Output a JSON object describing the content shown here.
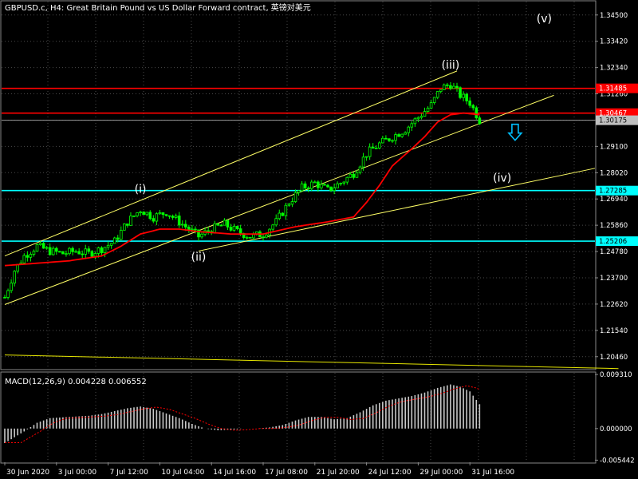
{
  "header": {
    "title": "GBPUSD.c, H4:  Great Britain Pound vs US Dollar Forward contract, 英镑对美元"
  },
  "colors": {
    "background": "#000000",
    "grid": "#4a4a4a",
    "bull_candle": "#00ff00",
    "bear_candle": "#00ff00",
    "ma": "#ff0000",
    "channel": "#ffff66",
    "resistance": "#ff0000",
    "support": "#00ffff",
    "macd_hist": "#c8c8c8",
    "macd_signal": "#ff0000",
    "text": "#ffffff"
  },
  "price_axis": {
    "ticks": [
      "1.34500",
      "1.33420",
      "1.32340",
      "1.31260",
      "1.30180",
      "1.29100",
      "1.28020",
      "1.26940",
      "1.25860",
      "1.24780",
      "1.23700",
      "1.22620",
      "1.21540",
      "1.20460"
    ],
    "range": [
      1.1996,
      1.3505
    ]
  },
  "price_labels": [
    {
      "value": "1.31485",
      "kind": "resistance",
      "price": 1.31485
    },
    {
      "value": "1.30467",
      "kind": "resistance",
      "price": 1.30467
    },
    {
      "value": "1.30175",
      "kind": "current",
      "price": 1.30175
    },
    {
      "value": "1.27285",
      "kind": "support",
      "price": 1.27285
    },
    {
      "value": "1.25206",
      "kind": "support",
      "price": 1.25206
    }
  ],
  "wave_labels": [
    {
      "text": "(i)",
      "bar": 42,
      "price": 1.272
    },
    {
      "text": "(ii)",
      "bar": 60,
      "price": 1.244
    },
    {
      "text": "(iii)",
      "bar": 138,
      "price": 1.323
    },
    {
      "text": "(iv)",
      "bar": 154,
      "price": 1.2765
    },
    {
      "text": "(v)",
      "bar": 167,
      "price": 1.342
    }
  ],
  "time_axis": {
    "labels": [
      {
        "text": "30 Jun 2020",
        "bar": 0
      },
      {
        "text": "3 Jul 00:00",
        "bar": 16
      },
      {
        "text": "7 Jul 12:00",
        "bar": 32
      },
      {
        "text": "10 Jul 04:00",
        "bar": 48
      },
      {
        "text": "14 Jul 16:00",
        "bar": 64
      },
      {
        "text": "17 Jul 08:00",
        "bar": 80
      },
      {
        "text": "21 Jul 20:00",
        "bar": 96
      },
      {
        "text": "24 Jul 12:00",
        "bar": 112
      },
      {
        "text": "29 Jul 00:00",
        "bar": 128
      },
      {
        "text": "31 Jul 16:00",
        "bar": 144
      }
    ]
  },
  "macd": {
    "label": "MACD(12,26,9) 0.004228 0.006552",
    "ticks": [
      "0.009310",
      "0.000000",
      "-0.005442"
    ],
    "range": [
      -0.0058,
      0.0096
    ]
  },
  "chart_data": {
    "type": "candlestick",
    "symbol": "GBPUSD.c",
    "timeframe": "H4",
    "ylim": [
      1.1996,
      1.3505
    ],
    "close_path": [
      [
        0,
        1.229
      ],
      [
        3,
        1.24
      ],
      [
        6,
        1.246
      ],
      [
        10,
        1.25
      ],
      [
        14,
        1.248
      ],
      [
        18,
        1.247
      ],
      [
        22,
        1.248
      ],
      [
        26,
        1.247
      ],
      [
        30,
        1.249
      ],
      [
        34,
        1.252
      ],
      [
        38,
        1.26
      ],
      [
        42,
        1.265
      ],
      [
        46,
        1.262
      ],
      [
        50,
        1.264
      ],
      [
        54,
        1.26
      ],
      [
        58,
        1.256
      ],
      [
        60,
        1.254
      ],
      [
        64,
        1.257
      ],
      [
        68,
        1.259
      ],
      [
        72,
        1.256
      ],
      [
        76,
        1.254
      ],
      [
        80,
        1.255
      ],
      [
        84,
        1.26
      ],
      [
        88,
        1.268
      ],
      [
        92,
        1.274
      ],
      [
        96,
        1.276
      ],
      [
        100,
        1.273
      ],
      [
        104,
        1.276
      ],
      [
        108,
        1.28
      ],
      [
        112,
        1.288
      ],
      [
        116,
        1.292
      ],
      [
        120,
        1.295
      ],
      [
        124,
        1.298
      ],
      [
        128,
        1.303
      ],
      [
        132,
        1.308
      ],
      [
        135,
        1.315
      ],
      [
        138,
        1.3165
      ],
      [
        141,
        1.312
      ],
      [
        144,
        1.309
      ],
      [
        147,
        1.3017
      ]
    ],
    "ma_path": [
      [
        0,
        1.242
      ],
      [
        10,
        1.243
      ],
      [
        20,
        1.244
      ],
      [
        30,
        1.246
      ],
      [
        36,
        1.25
      ],
      [
        42,
        1.255
      ],
      [
        48,
        1.257
      ],
      [
        54,
        1.257
      ],
      [
        60,
        1.256
      ],
      [
        70,
        1.255
      ],
      [
        80,
        1.255
      ],
      [
        90,
        1.258
      ],
      [
        100,
        1.26
      ],
      [
        108,
        1.262
      ],
      [
        112,
        1.268
      ],
      [
        116,
        1.275
      ],
      [
        120,
        1.283
      ],
      [
        126,
        1.29
      ],
      [
        130,
        1.295
      ],
      [
        134,
        1.301
      ],
      [
        138,
        1.304
      ],
      [
        142,
        1.3047
      ],
      [
        147,
        1.304
      ]
    ],
    "channel_lines": [
      {
        "from": [
          0,
          1.246
        ],
        "to": [
          140,
          1.322
        ]
      },
      {
        "from": [
          0,
          1.226
        ],
        "to": [
          170,
          1.312
        ]
      },
      {
        "from": [
          60,
          1.248
        ],
        "to": [
          190,
          1.282
        ]
      }
    ],
    "horizontal_lines": [
      {
        "price": 1.31485,
        "kind": "resistance"
      },
      {
        "price": 1.30467,
        "kind": "resistance"
      },
      {
        "price": 1.27285,
        "kind": "support"
      },
      {
        "price": 1.25206,
        "kind": "support"
      }
    ],
    "long_ma_line": {
      "from": [
        0,
        1.2053
      ],
      "to": [
        190,
        1.1997
      ]
    },
    "arrow": {
      "direction": "down",
      "bar": 158,
      "price": 1.2955
    },
    "macd_hist_path": [
      [
        0,
        -0.0025
      ],
      [
        6,
        -0.0005
      ],
      [
        10,
        0.001
      ],
      [
        14,
        0.0018
      ],
      [
        20,
        0.002
      ],
      [
        26,
        0.0022
      ],
      [
        30,
        0.0025
      ],
      [
        34,
        0.003
      ],
      [
        38,
        0.0035
      ],
      [
        42,
        0.0038
      ],
      [
        46,
        0.0034
      ],
      [
        50,
        0.0026
      ],
      [
        54,
        0.0018
      ],
      [
        58,
        0.0008
      ],
      [
        62,
        0.0
      ],
      [
        66,
        -0.0003
      ],
      [
        70,
        -0.0002
      ],
      [
        74,
        0.0
      ],
      [
        78,
        0.0
      ],
      [
        82,
        0.0002
      ],
      [
        86,
        0.0006
      ],
      [
        90,
        0.0014
      ],
      [
        94,
        0.002
      ],
      [
        98,
        0.002
      ],
      [
        102,
        0.0016
      ],
      [
        106,
        0.0018
      ],
      [
        110,
        0.0028
      ],
      [
        114,
        0.004
      ],
      [
        118,
        0.0048
      ],
      [
        122,
        0.0052
      ],
      [
        126,
        0.0056
      ],
      [
        130,
        0.0062
      ],
      [
        134,
        0.007
      ],
      [
        138,
        0.0076
      ],
      [
        141,
        0.0072
      ],
      [
        144,
        0.0064
      ],
      [
        147,
        0.0042
      ]
    ]
  }
}
